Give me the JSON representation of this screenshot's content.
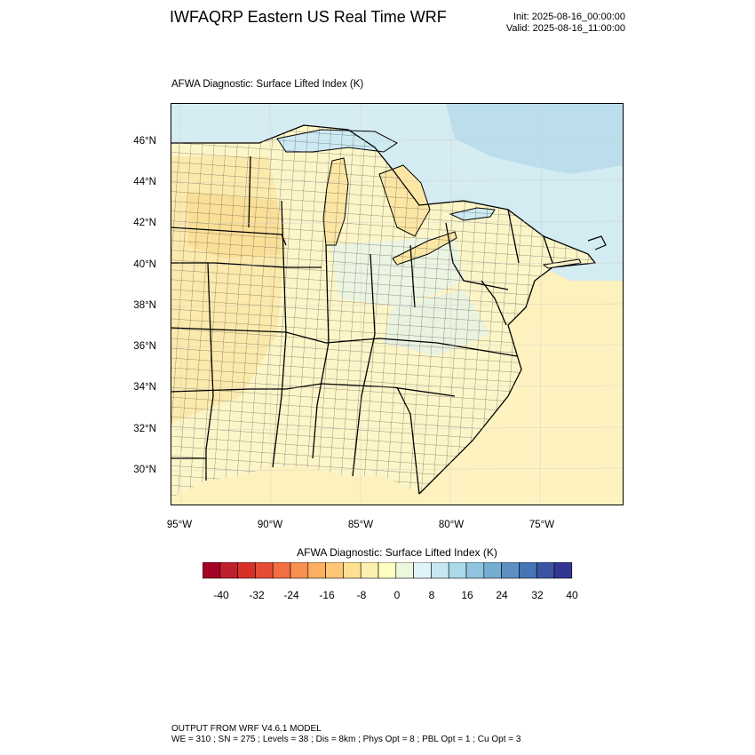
{
  "header": {
    "title": "IWFAQRP Eastern US Real Time WRF",
    "init": "Init: 2025-08-16_00:00:00",
    "valid": "Valid: 2025-08-16_11:00:00"
  },
  "map": {
    "title": "AFWA Diagnostic: Surface Lifted Index   (K)",
    "lat_labels": [
      "46°N",
      "44°N",
      "42°N",
      "40°N",
      "38°N",
      "36°N",
      "34°N",
      "32°N",
      "30°N"
    ],
    "lon_labels": [
      "95°W",
      "90°W",
      "85°W",
      "80°W",
      "75°W"
    ],
    "colors": {
      "water": "#cde9f1",
      "land_warm": "#fdf3c2",
      "land_pale": "#fbf8d6",
      "land_orange": "#fbe09c",
      "land_cool": "#dff2e8",
      "land_blue": "#bfe1ec",
      "border": "#000000"
    }
  },
  "colorbar": {
    "title": "AFWA Diagnostic: Surface Lifted Index  (K)",
    "tick_labels": [
      "-40",
      "-32",
      "-24",
      "-16",
      "-8",
      "0",
      "8",
      "16",
      "24",
      "32",
      "40"
    ],
    "colors": [
      "#a50026",
      "#c01f2c",
      "#d73027",
      "#e44d34",
      "#f46d43",
      "#f8904f",
      "#fdae61",
      "#fec675",
      "#fee090",
      "#fdefae",
      "#ffffbf",
      "#ecf7de",
      "#e0f3f8",
      "#c7e6f0",
      "#abd9e9",
      "#90c3dd",
      "#74add1",
      "#5d8fc2",
      "#4575b4",
      "#3b55a3",
      "#313695"
    ]
  },
  "footer": {
    "line1": "OUTPUT FROM WRF V4.6.1 MODEL",
    "line2": "WE = 310 ; SN = 275 ; Levels = 38 ; Dis = 8km ; Phys Opt = 8 ; PBL Opt = 1 ; Cu Opt = 3"
  }
}
